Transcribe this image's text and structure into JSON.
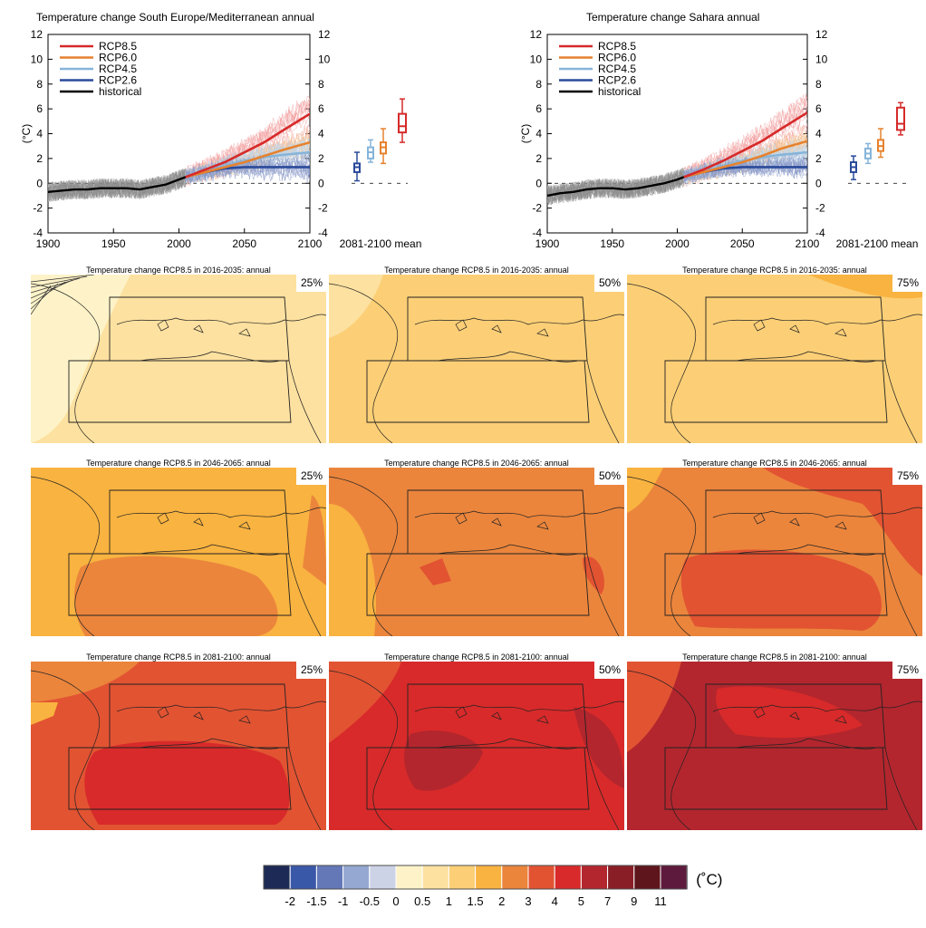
{
  "time_series": [
    {
      "title": "Temperature change South Europe/Mediterranean annual",
      "ylabel": "(°C)",
      "ylim": [
        -4,
        12
      ],
      "yticks": [
        -4,
        -2,
        0,
        2,
        4,
        6,
        8,
        10,
        12
      ],
      "xlim": [
        1900,
        2100
      ],
      "xticks": [
        1900,
        1950,
        2000,
        2050,
        2100
      ],
      "box_label": "2081-2100 mean",
      "legend": [
        {
          "name": "RCP8.5",
          "color": "#d62a2a"
        },
        {
          "name": "RCP6.0",
          "color": "#e6822e"
        },
        {
          "name": "RCP4.5",
          "color": "#86b4da"
        },
        {
          "name": "RCP2.6",
          "color": "#2a4a9a"
        },
        {
          "name": "historical",
          "color": "#000000"
        }
      ],
      "historical": {
        "x": [
          1900,
          1910,
          1920,
          1930,
          1940,
          1950,
          1960,
          1970,
          1980,
          1990,
          2000,
          2005
        ],
        "y": [
          -0.7,
          -0.6,
          -0.5,
          -0.5,
          -0.4,
          -0.4,
          -0.4,
          -0.5,
          -0.3,
          -0.1,
          0.3,
          0.5
        ]
      },
      "series": [
        {
          "name": "RCP8.5",
          "x": [
            2005,
            2020,
            2035,
            2050,
            2065,
            2080,
            2100
          ],
          "y": [
            0.5,
            1.1,
            1.7,
            2.5,
            3.3,
            4.3,
            5.6
          ]
        },
        {
          "name": "RCP6.0",
          "x": [
            2005,
            2020,
            2035,
            2050,
            2065,
            2080,
            2100
          ],
          "y": [
            0.5,
            0.9,
            1.3,
            1.7,
            2.2,
            2.7,
            3.3
          ]
        },
        {
          "name": "RCP4.5",
          "x": [
            2005,
            2020,
            2035,
            2050,
            2065,
            2080,
            2100
          ],
          "y": [
            0.5,
            0.9,
            1.4,
            1.8,
            2.1,
            2.3,
            2.5
          ]
        },
        {
          "name": "RCP2.6",
          "x": [
            2005,
            2020,
            2035,
            2050,
            2065,
            2080,
            2100
          ],
          "y": [
            0.5,
            0.9,
            1.2,
            1.3,
            1.3,
            1.3,
            1.3
          ]
        }
      ],
      "boxes": [
        {
          "name": "RCP2.6",
          "min": 0.2,
          "q1": 0.9,
          "median": 1.3,
          "q3": 1.6,
          "max": 2.5
        },
        {
          "name": "RCP4.5",
          "min": 1.7,
          "q1": 2.0,
          "median": 2.5,
          "q3": 2.9,
          "max": 3.5
        },
        {
          "name": "RCP6.0",
          "min": 1.6,
          "q1": 2.4,
          "median": 2.9,
          "q3": 3.3,
          "max": 4.4
        },
        {
          "name": "RCP8.5",
          "min": 3.3,
          "q1": 4.1,
          "median": 4.6,
          "q3": 5.6,
          "max": 6.8
        }
      ]
    },
    {
      "title": "Temperature change Sahara annual",
      "ylabel": "(°C)",
      "ylim": [
        -4,
        12
      ],
      "yticks": [
        -4,
        -2,
        0,
        2,
        4,
        6,
        8,
        10,
        12
      ],
      "xlim": [
        1900,
        2100
      ],
      "xticks": [
        1900,
        1950,
        2000,
        2050,
        2100
      ],
      "box_label": "2081-2100 mean",
      "legend": [
        {
          "name": "RCP8.5",
          "color": "#d62a2a"
        },
        {
          "name": "RCP6.0",
          "color": "#e6822e"
        },
        {
          "name": "RCP4.5",
          "color": "#86b4da"
        },
        {
          "name": "RCP2.6",
          "color": "#2a4a9a"
        },
        {
          "name": "historical",
          "color": "#000000"
        }
      ],
      "historical": {
        "x": [
          1900,
          1910,
          1920,
          1930,
          1940,
          1950,
          1960,
          1970,
          1980,
          1990,
          2000,
          2005
        ],
        "y": [
          -1.0,
          -0.8,
          -0.7,
          -0.5,
          -0.4,
          -0.4,
          -0.5,
          -0.4,
          -0.2,
          0.0,
          0.3,
          0.5
        ]
      },
      "series": [
        {
          "name": "RCP8.5",
          "x": [
            2005,
            2020,
            2035,
            2050,
            2065,
            2080,
            2100
          ],
          "y": [
            0.5,
            1.1,
            1.8,
            2.6,
            3.4,
            4.4,
            5.7
          ]
        },
        {
          "name": "RCP6.0",
          "x": [
            2005,
            2020,
            2035,
            2050,
            2065,
            2080,
            2100
          ],
          "y": [
            0.5,
            0.9,
            1.3,
            1.7,
            2.2,
            2.8,
            3.4
          ]
        },
        {
          "name": "RCP4.5",
          "x": [
            2005,
            2020,
            2035,
            2050,
            2065,
            2080,
            2100
          ],
          "y": [
            0.5,
            0.9,
            1.4,
            1.8,
            2.1,
            2.3,
            2.5
          ]
        },
        {
          "name": "RCP2.6",
          "x": [
            2005,
            2020,
            2035,
            2050,
            2065,
            2080,
            2100
          ],
          "y": [
            0.5,
            0.9,
            1.2,
            1.3,
            1.3,
            1.3,
            1.3
          ]
        }
      ],
      "boxes": [
        {
          "name": "RCP2.6",
          "min": 0.3,
          "q1": 0.9,
          "median": 1.3,
          "q3": 1.7,
          "max": 2.2
        },
        {
          "name": "RCP4.5",
          "min": 1.6,
          "q1": 2.0,
          "median": 2.4,
          "q3": 2.8,
          "max": 3.2
        },
        {
          "name": "RCP6.0",
          "min": 2.1,
          "q1": 2.6,
          "median": 3.0,
          "q3": 3.5,
          "max": 4.4
        },
        {
          "name": "RCP8.5",
          "min": 3.9,
          "q1": 4.3,
          "median": 4.8,
          "q3": 6.1,
          "max": 6.5
        }
      ]
    }
  ],
  "maps": [
    {
      "title": "Temperature change RCP8.5 in 2016-2035: annual",
      "percentile": "25%",
      "base": "#fde1a0",
      "accent": "#fef3c8"
    },
    {
      "title": "Temperature change RCP8.5 in 2016-2035: annual",
      "percentile": "50%",
      "base": "#fccf76",
      "accent": "#fde1a0"
    },
    {
      "title": "Temperature change RCP8.5 in 2016-2035: annual",
      "percentile": "75%",
      "base": "#fccf76",
      "accent": "#f9b340"
    },
    {
      "title": "Temperature change RCP8.5 in 2046-2065: annual",
      "percentile": "25%",
      "base": "#f9b340",
      "accent": "#eb853c"
    },
    {
      "title": "Temperature change RCP8.5 in 2046-2065: annual",
      "percentile": "50%",
      "base": "#eb853c",
      "accent": "#f9b340"
    },
    {
      "title": "Temperature change RCP8.5 in 2046-2065: annual",
      "percentile": "75%",
      "base": "#eb853c",
      "accent": "#e25332"
    },
    {
      "title": "Temperature change RCP8.5 in 2081-2100: annual",
      "percentile": "25%",
      "base": "#e25332",
      "accent": "#d82a2a"
    },
    {
      "title": "Temperature change RCP8.5 in 2081-2100: annual",
      "percentile": "50%",
      "base": "#d82a2a",
      "accent": "#b3262e"
    },
    {
      "title": "Temperature change RCP8.5 in 2081-2100: annual",
      "percentile": "75%",
      "base": "#b3262e",
      "accent": "#d82a2a"
    }
  ],
  "colorbar": {
    "unit": "(˚C)",
    "colors": [
      "#1d2a55",
      "#3a58a8",
      "#6478b8",
      "#95a8d2",
      "#ccd3e6",
      "#fef3c8",
      "#fde1a0",
      "#fccf76",
      "#f9b340",
      "#eb853c",
      "#e25332",
      "#d82a2a",
      "#b3262e",
      "#8a1e26",
      "#5e151c",
      "#5e1a3d"
    ],
    "labels": [
      "-2",
      "-1.5",
      "-1",
      "-0.5",
      "0",
      "0.5",
      "1",
      "1.5",
      "2",
      "3",
      "4",
      "5",
      "7",
      "9",
      "11"
    ]
  }
}
